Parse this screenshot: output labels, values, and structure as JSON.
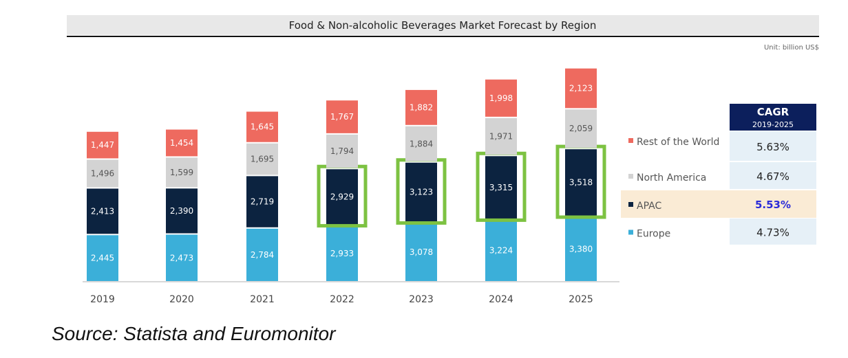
{
  "chart_data": {
    "type": "bar",
    "stacked": true,
    "title": "Food & Non-alcoholic Beverages Market Forecast by Region",
    "unit": "Unit: billion US$",
    "categories": [
      "2019",
      "2020",
      "2021",
      "2022",
      "2023",
      "2024",
      "2025"
    ],
    "series": [
      {
        "name": "Europe",
        "color": "#3bafd9",
        "values": [
          2445,
          2473,
          2784,
          2933,
          3078,
          3224,
          3380
        ],
        "labels": [
          "2,445",
          "2,473",
          "2,784",
          "2,933",
          "3,078",
          "3,224",
          "3,380"
        ]
      },
      {
        "name": "APAC",
        "color": "#0c2340",
        "values": [
          2413,
          2390,
          2719,
          2929,
          3123,
          3315,
          3518
        ],
        "labels": [
          "2,413",
          "2,390",
          "2,719",
          "2,929",
          "3,123",
          "3,315",
          "3,518"
        ]
      },
      {
        "name": "North America",
        "color": "#d3d3d3",
        "values": [
          1496,
          1599,
          1695,
          1794,
          1884,
          1971,
          2059
        ],
        "labels": [
          "1,496",
          "1,599",
          "1,695",
          "1,794",
          "1,884",
          "1,971",
          "2,059"
        ]
      },
      {
        "name": "Rest of the World",
        "color": "#ee6a5f",
        "values": [
          1447,
          1454,
          1645,
          1767,
          1882,
          1998,
          2123
        ],
        "labels": [
          "1,447",
          "1,454",
          "1,645",
          "1,767",
          "1,882",
          "1,998",
          "2,123"
        ]
      }
    ],
    "highlight": {
      "series": "APAC",
      "categories": [
        "2022",
        "2023",
        "2024",
        "2025"
      ],
      "color": "#7dc242"
    },
    "legend_placement": "right",
    "grid": false,
    "cagr_table": {
      "header": "CAGR",
      "subheader": "2019-2025",
      "rows": [
        {
          "name": "Rest of the World",
          "value": "5.63%"
        },
        {
          "name": "North America",
          "value": "4.67%"
        },
        {
          "name": "APAC",
          "value": "5.53%",
          "highlighted": true
        },
        {
          "name": "Europe",
          "value": "4.73%"
        }
      ]
    }
  },
  "source": "Source: Statista and Euromonitor"
}
